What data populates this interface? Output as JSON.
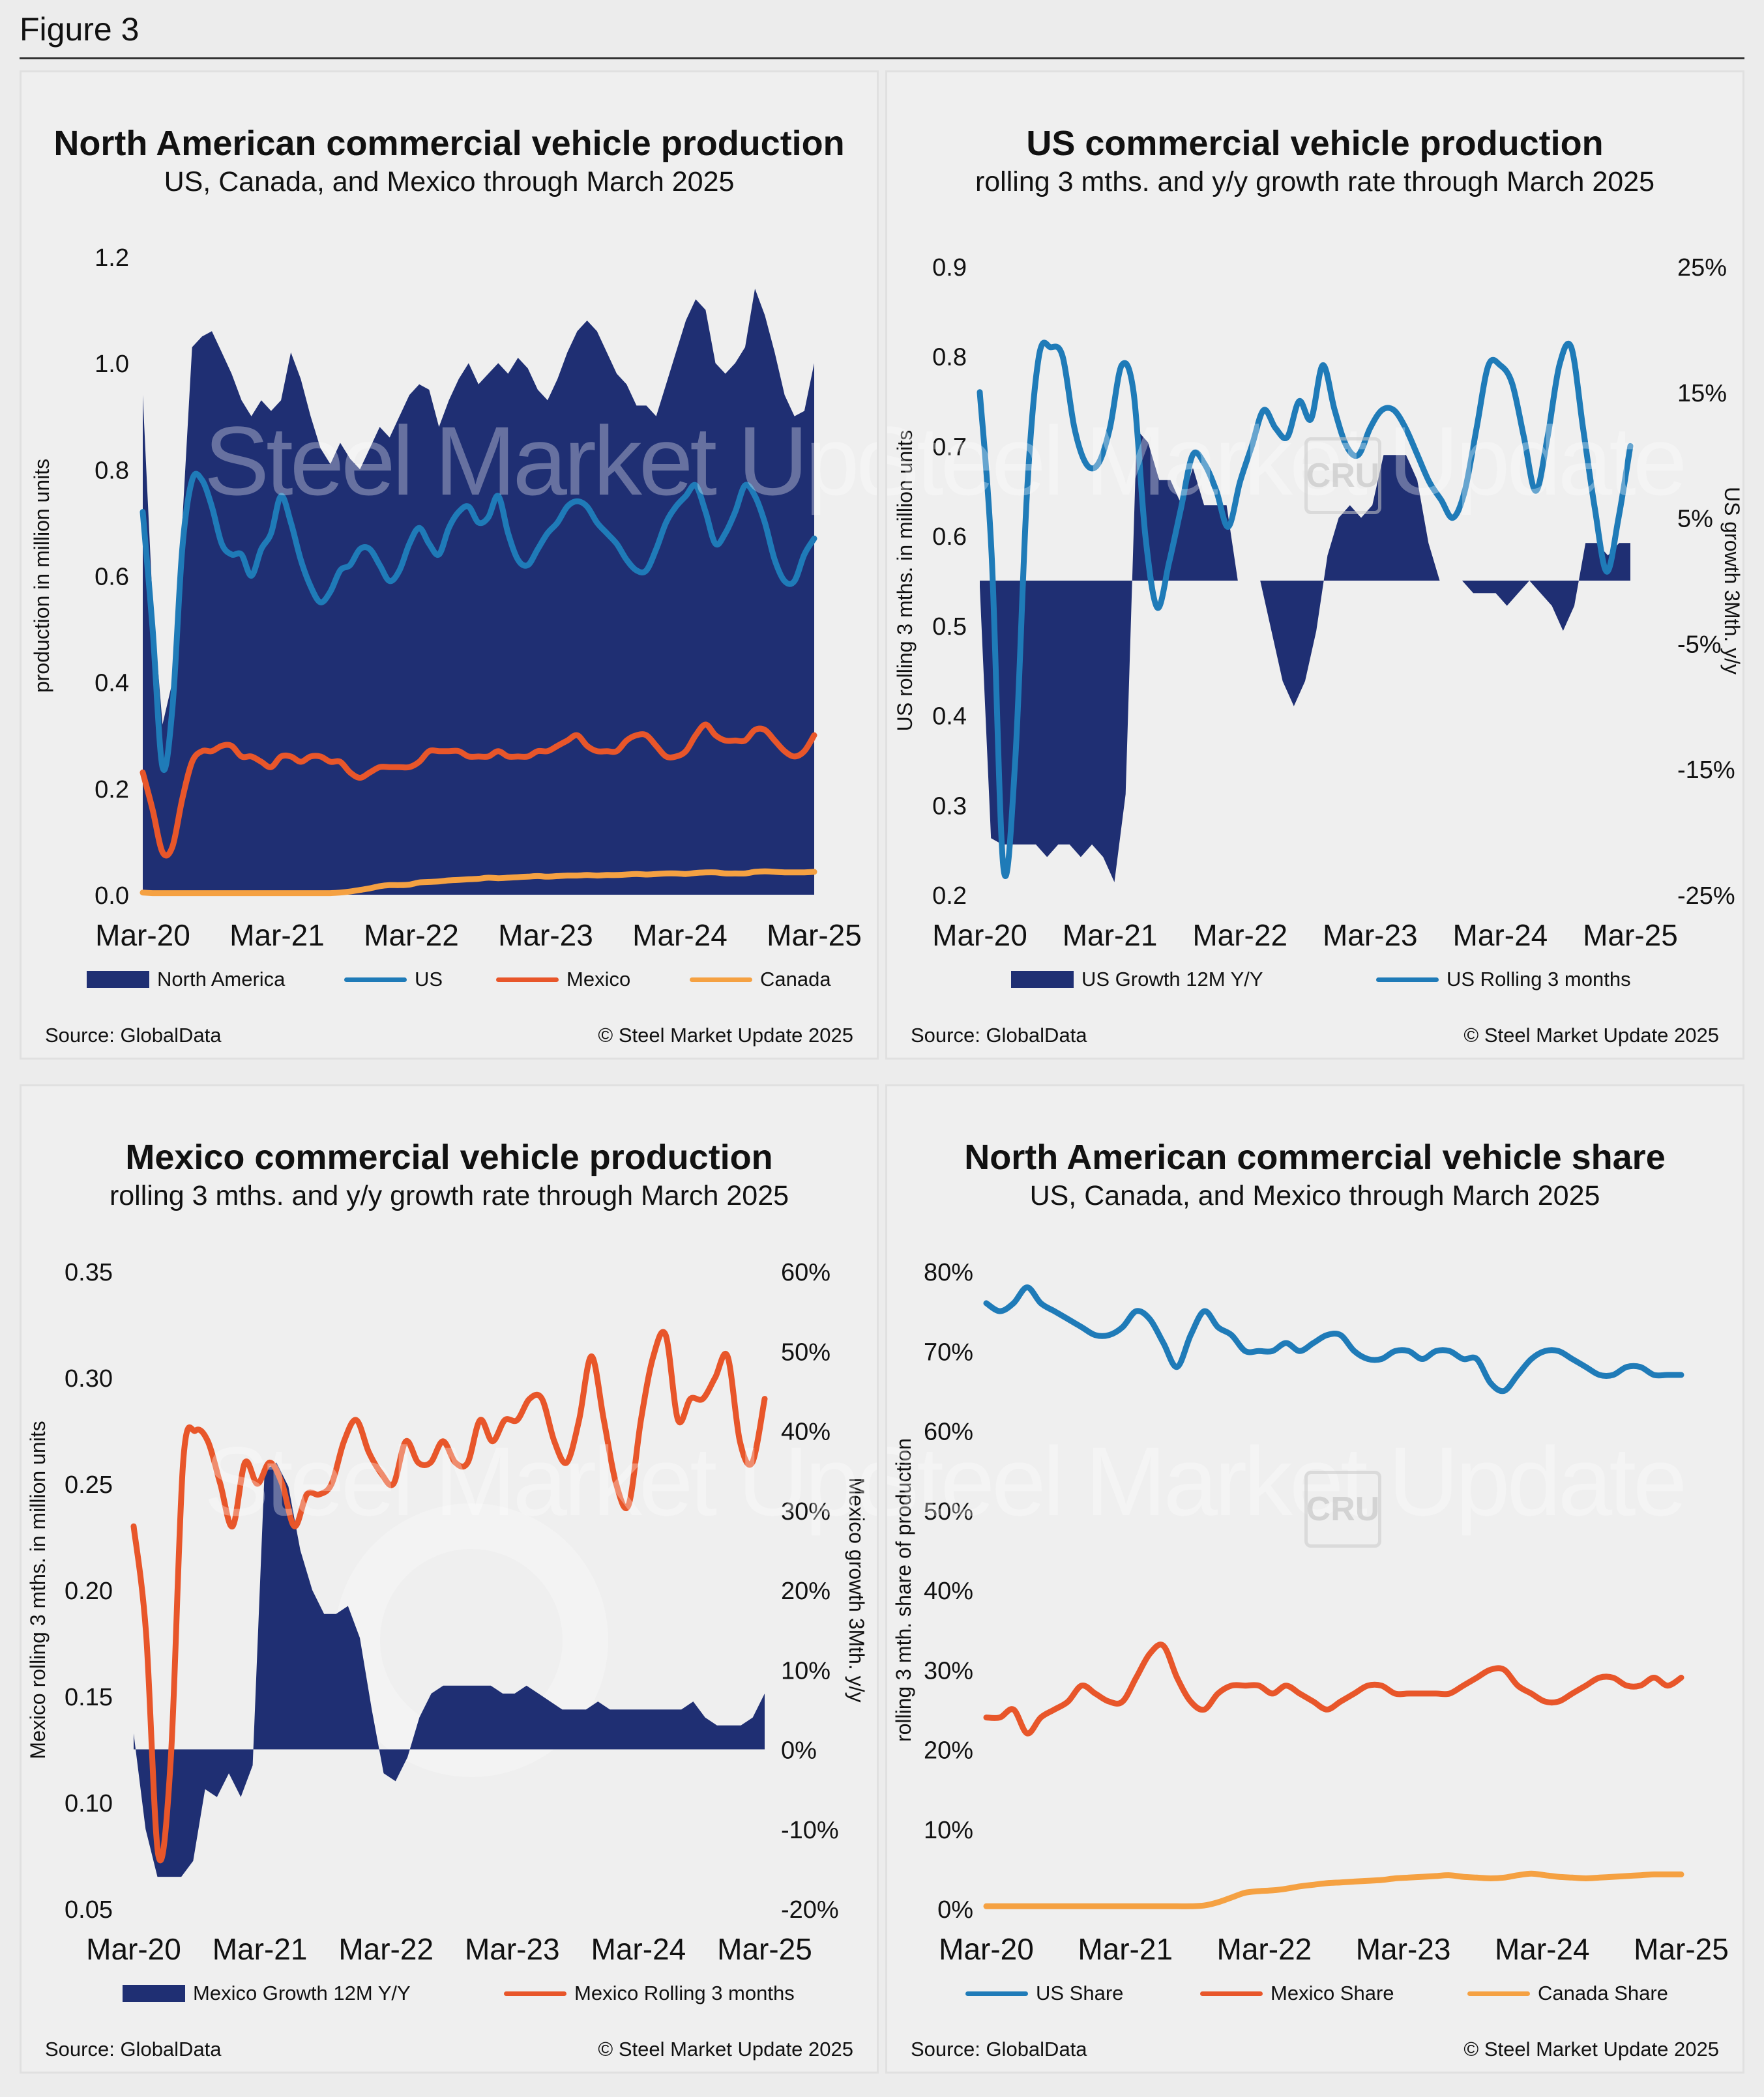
{
  "figure_label": "Figure 3",
  "colors": {
    "navy": "#1f2f73",
    "us_blue": "#1f7bb8",
    "mexico_orange": "#e8562a",
    "canada_orange": "#f5a142"
  },
  "watermark": {
    "brand1": "Steel Market",
    "brand2": "Update",
    "logo": "CRU"
  },
  "panels": {
    "na": {
      "title": "North American commercial vehicle production",
      "subtitle": "US, Canada, and Mexico through March 2025",
      "source": "Source: GlobalData",
      "copyright": "© Steel Market Update 2025",
      "legend": [
        "North America",
        "US",
        "Mexico",
        "Canada"
      ]
    },
    "us": {
      "title": "US commercial vehicle production",
      "subtitle": "rolling 3 mths. and y/y growth rate through March 2025",
      "source": "Source: GlobalData",
      "copyright": "© Steel Market Update 2025",
      "legend": [
        "US Growth 12M Y/Y",
        "US Rolling 3 months"
      ]
    },
    "mx": {
      "title": "Mexico commercial vehicle production",
      "subtitle": "rolling 3 mths. and y/y growth rate through March 2025",
      "source": "Source: GlobalData",
      "copyright": "© Steel Market Update 2025",
      "legend": [
        "Mexico Growth 12M Y/Y",
        "Mexico Rolling 3 months"
      ]
    },
    "share": {
      "title": "North American commercial vehicle share",
      "subtitle": "US, Canada, and Mexico through March 2025",
      "source": "Source: GlobalData",
      "copyright": "© Steel Market Update 2025",
      "legend": [
        "US Share",
        "Mexico Share",
        "Canada Share"
      ]
    }
  },
  "chart_data": [
    {
      "id": "na",
      "type": "area",
      "title": "North American commercial vehicle production",
      "subtitle": "US, Canada, and Mexico through March 2025",
      "ylabel": "production in million units",
      "ylim": [
        0,
        1.2
      ],
      "yticks": [
        "0.0",
        "0.2",
        "0.4",
        "0.6",
        "0.8",
        "1.0",
        "1.2"
      ],
      "xtick_labels": [
        "Mar-20",
        "Mar-21",
        "Mar-22",
        "Mar-23",
        "Mar-24",
        "Mar-25"
      ],
      "legend_position": "bottom",
      "series": [
        {
          "name": "North America",
          "kind": "area",
          "values": [
            0.94,
            0.55,
            0.32,
            0.4,
            0.7,
            1.03,
            1.05,
            1.06,
            1.02,
            0.98,
            0.93,
            0.9,
            0.93,
            0.91,
            0.93,
            1.02,
            0.97,
            0.9,
            0.84,
            0.81,
            0.85,
            0.82,
            0.8,
            0.84,
            0.88,
            0.86,
            0.9,
            0.94,
            0.96,
            0.95,
            0.88,
            0.93,
            0.97,
            1.0,
            0.96,
            0.98,
            1.0,
            0.98,
            1.01,
            0.99,
            0.95,
            0.93,
            0.97,
            1.02,
            1.06,
            1.08,
            1.06,
            1.02,
            0.98,
            0.96,
            0.92,
            0.92,
            0.9,
            0.96,
            1.02,
            1.08,
            1.12,
            1.1,
            1.0,
            0.98,
            1.0,
            1.03,
            1.14,
            1.09,
            1.02,
            0.94,
            0.9,
            0.91,
            1.0
          ]
        },
        {
          "name": "US",
          "kind": "line",
          "values": [
            0.72,
            0.5,
            0.24,
            0.35,
            0.65,
            0.78,
            0.78,
            0.73,
            0.66,
            0.64,
            0.64,
            0.6,
            0.65,
            0.68,
            0.75,
            0.7,
            0.63,
            0.58,
            0.55,
            0.57,
            0.61,
            0.62,
            0.65,
            0.65,
            0.62,
            0.59,
            0.61,
            0.66,
            0.69,
            0.66,
            0.64,
            0.69,
            0.72,
            0.73,
            0.7,
            0.71,
            0.75,
            0.68,
            0.63,
            0.62,
            0.65,
            0.68,
            0.7,
            0.73,
            0.74,
            0.73,
            0.7,
            0.68,
            0.66,
            0.63,
            0.61,
            0.61,
            0.65,
            0.7,
            0.73,
            0.75,
            0.77,
            0.72,
            0.66,
            0.68,
            0.72,
            0.77,
            0.75,
            0.7,
            0.63,
            0.59,
            0.59,
            0.64,
            0.67
          ]
        },
        {
          "name": "Mexico",
          "kind": "line",
          "values": [
            0.23,
            0.16,
            0.08,
            0.09,
            0.18,
            0.25,
            0.27,
            0.27,
            0.28,
            0.28,
            0.26,
            0.26,
            0.25,
            0.24,
            0.26,
            0.26,
            0.25,
            0.26,
            0.26,
            0.25,
            0.25,
            0.23,
            0.22,
            0.23,
            0.24,
            0.24,
            0.24,
            0.24,
            0.25,
            0.27,
            0.27,
            0.27,
            0.27,
            0.26,
            0.26,
            0.26,
            0.27,
            0.26,
            0.26,
            0.26,
            0.27,
            0.27,
            0.28,
            0.29,
            0.3,
            0.28,
            0.27,
            0.27,
            0.27,
            0.29,
            0.3,
            0.3,
            0.28,
            0.26,
            0.26,
            0.27,
            0.3,
            0.32,
            0.3,
            0.29,
            0.29,
            0.29,
            0.31,
            0.31,
            0.29,
            0.27,
            0.26,
            0.27,
            0.3
          ]
        },
        {
          "name": "Canada",
          "kind": "line",
          "values": [
            0.004,
            0.003,
            0.003,
            0.003,
            0.003,
            0.003,
            0.003,
            0.003,
            0.003,
            0.003,
            0.003,
            0.003,
            0.003,
            0.003,
            0.003,
            0.003,
            0.003,
            0.003,
            0.003,
            0.003,
            0.004,
            0.006,
            0.009,
            0.012,
            0.016,
            0.018,
            0.018,
            0.019,
            0.023,
            0.024,
            0.025,
            0.027,
            0.028,
            0.029,
            0.03,
            0.032,
            0.031,
            0.032,
            0.033,
            0.034,
            0.035,
            0.034,
            0.035,
            0.036,
            0.036,
            0.037,
            0.036,
            0.037,
            0.037,
            0.038,
            0.039,
            0.038,
            0.039,
            0.04,
            0.04,
            0.039,
            0.041,
            0.042,
            0.042,
            0.04,
            0.04,
            0.04,
            0.043,
            0.044,
            0.043,
            0.042,
            0.042,
            0.042,
            0.043
          ]
        }
      ]
    },
    {
      "id": "us",
      "type": "area",
      "title": "US commercial vehicle production",
      "subtitle": "rolling 3 mths. and y/y growth rate through March 2025",
      "ylabel": "US rolling 3 mths. in million units",
      "ylabel_right": "US growth 3Mth. y/y",
      "ylim": [
        0.2,
        0.9
      ],
      "ylim_right": [
        -25,
        25
      ],
      "yticks": [
        "0.2",
        "0.3",
        "0.4",
        "0.5",
        "0.6",
        "0.7",
        "0.8",
        "0.9"
      ],
      "yticks_right": [
        "-25%",
        "-15%",
        "-5%",
        "5%",
        "15%",
        "25%"
      ],
      "xtick_labels": [
        "Mar-20",
        "Mar-21",
        "Mar-22",
        "Mar-23",
        "Mar-24",
        "Mar-25"
      ],
      "legend_position": "bottom",
      "series": [
        {
          "name": "US Growth 12M Y/Y",
          "kind": "area",
          "axis": "right",
          "values": [
            -0.5,
            -20.5,
            -21,
            -21,
            -21,
            -21,
            -22,
            -21,
            -21,
            -22,
            -21,
            -22,
            -24,
            -17,
            12,
            11,
            8,
            8,
            6,
            9,
            6,
            6,
            6,
            0,
            0,
            0,
            -4,
            -8,
            -10,
            -8,
            -4,
            2,
            5,
            6,
            5,
            6,
            10,
            10,
            10,
            8,
            3,
            0,
            0,
            0,
            -1,
            -1,
            -1,
            -2,
            -1,
            0,
            -1,
            -2,
            -4,
            -2,
            3,
            3,
            2,
            3,
            3
          ]
        },
        {
          "name": "US Rolling 3 months",
          "kind": "line",
          "axis": "left",
          "values": [
            0.76,
            0.58,
            0.23,
            0.35,
            0.65,
            0.8,
            0.81,
            0.8,
            0.72,
            0.68,
            0.68,
            0.72,
            0.79,
            0.76,
            0.6,
            0.52,
            0.57,
            0.63,
            0.69,
            0.68,
            0.65,
            0.61,
            0.66,
            0.7,
            0.74,
            0.72,
            0.71,
            0.75,
            0.73,
            0.79,
            0.74,
            0.7,
            0.69,
            0.72,
            0.74,
            0.74,
            0.72,
            0.69,
            0.66,
            0.64,
            0.62,
            0.65,
            0.72,
            0.79,
            0.79,
            0.77,
            0.71,
            0.65,
            0.71,
            0.79,
            0.81,
            0.72,
            0.63,
            0.56,
            0.62,
            0.7
          ]
        }
      ]
    },
    {
      "id": "mx",
      "type": "area",
      "title": "Mexico commercial vehicle production",
      "subtitle": "rolling 3 mths. and y/y growth rate through March 2025",
      "ylabel": "Mexico rolling 3 mths. in million units",
      "ylabel_right": "Mexico growth 3Mth. y/y",
      "ylim": [
        0.05,
        0.35
      ],
      "ylim_right": [
        -20,
        60
      ],
      "yticks": [
        "0.05",
        "0.10",
        "0.15",
        "0.20",
        "0.25",
        "0.30",
        "0.35"
      ],
      "yticks_right": [
        "-20%",
        "-10%",
        "0%",
        "10%",
        "20%",
        "30%",
        "40%",
        "50%",
        "60%"
      ],
      "xtick_labels": [
        "Mar-20",
        "Mar-21",
        "Mar-22",
        "Mar-23",
        "Mar-24",
        "Mar-25"
      ],
      "legend_position": "bottom",
      "series": [
        {
          "name": "Mexico Growth 12M Y/Y",
          "kind": "area",
          "axis": "right",
          "values": [
            2,
            -10,
            -16,
            -16,
            -16,
            -14,
            -5,
            -6,
            -3,
            -6,
            -2,
            35,
            36,
            33,
            25,
            20,
            17,
            17,
            18,
            14,
            5,
            -3,
            -4,
            -1,
            4,
            7,
            8,
            8,
            8,
            8,
            8,
            7,
            7,
            8,
            7,
            6,
            5,
            5,
            5,
            6,
            5,
            5,
            5,
            5,
            5,
            5,
            5,
            6,
            4,
            3,
            3,
            3,
            4,
            7
          ]
        },
        {
          "name": "Mexico Rolling 3 months",
          "kind": "line",
          "axis": "left",
          "values": [
            0.23,
            0.18,
            0.075,
            0.12,
            0.26,
            0.275,
            0.27,
            0.25,
            0.23,
            0.26,
            0.25,
            0.26,
            0.25,
            0.23,
            0.245,
            0.245,
            0.25,
            0.27,
            0.28,
            0.265,
            0.255,
            0.25,
            0.27,
            0.26,
            0.26,
            0.27,
            0.26,
            0.26,
            0.28,
            0.27,
            0.28,
            0.28,
            0.29,
            0.29,
            0.27,
            0.26,
            0.28,
            0.31,
            0.28,
            0.25,
            0.24,
            0.28,
            0.31,
            0.32,
            0.28,
            0.29,
            0.29,
            0.3,
            0.31,
            0.27,
            0.26,
            0.29
          ]
        }
      ]
    },
    {
      "id": "share",
      "type": "line",
      "title": "North American commercial vehicle share",
      "subtitle": "US, Canada, and Mexico through March 2025",
      "ylabel": "rolling 3 mth. share of production",
      "ylim": [
        0,
        80
      ],
      "yticks": [
        "0%",
        "10%",
        "20%",
        "30%",
        "40%",
        "50%",
        "60%",
        "70%",
        "80%"
      ],
      "xtick_labels": [
        "Mar-20",
        "Mar-21",
        "Mar-22",
        "Mar-23",
        "Mar-24",
        "Mar-25"
      ],
      "legend_position": "bottom",
      "series": [
        {
          "name": "US Share",
          "kind": "line",
          "values": [
            76,
            75,
            76,
            78,
            76,
            75,
            74,
            73,
            72,
            72,
            73,
            75,
            74,
            71,
            68,
            72,
            75,
            73,
            72,
            70,
            70,
            70,
            71,
            70,
            71,
            72,
            72,
            70,
            69,
            69,
            70,
            70,
            69,
            70,
            70,
            69,
            69,
            66,
            65,
            67,
            69,
            70,
            70,
            69,
            68,
            67,
            67,
            68,
            68,
            67,
            67,
            67
          ]
        },
        {
          "name": "Mexico Share",
          "kind": "line",
          "values": [
            24,
            24,
            25,
            22,
            24,
            25,
            26,
            28,
            27,
            26,
            26,
            29,
            32,
            33,
            29,
            26,
            25,
            27,
            28,
            28,
            28,
            27,
            28,
            27,
            26,
            25,
            26,
            27,
            28,
            28,
            27,
            27,
            27,
            27,
            27,
            28,
            29,
            30,
            30,
            28,
            27,
            26,
            26,
            27,
            28,
            29,
            29,
            28,
            28,
            29,
            28,
            29
          ]
        },
        {
          "name": "Canada Share",
          "kind": "line",
          "values": [
            0.3,
            0.3,
            0.3,
            0.3,
            0.3,
            0.3,
            0.3,
            0.3,
            0.3,
            0.3,
            0.3,
            0.3,
            0.3,
            0.3,
            0.3,
            0.3,
            0.4,
            0.8,
            1.4,
            2.0,
            2.2,
            2.3,
            2.5,
            2.8,
            3.0,
            3.2,
            3.3,
            3.4,
            3.5,
            3.6,
            3.8,
            3.9,
            4.0,
            4.1,
            4.2,
            4.0,
            3.9,
            3.8,
            3.9,
            4.2,
            4.4,
            4.2,
            4.0,
            3.9,
            3.8,
            3.9,
            4.0,
            4.1,
            4.2,
            4.3,
            4.3,
            4.3
          ]
        }
      ]
    }
  ]
}
